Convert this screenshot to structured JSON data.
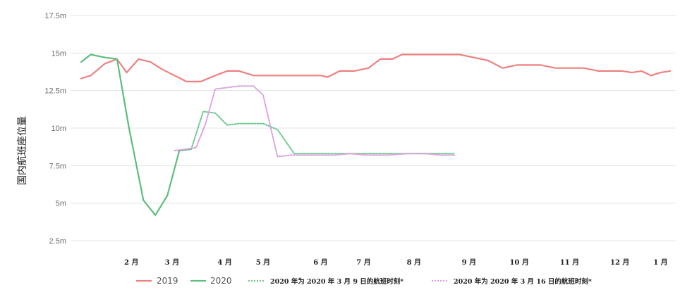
{
  "chart_data": {
    "type": "line",
    "ylabel": "国内航班座位量",
    "ylim": [
      2.5,
      17.5
    ],
    "yticks": [
      "2.5m",
      "5m",
      "7.5m",
      "10m",
      "12.5m",
      "15m",
      "17.5m"
    ],
    "ytick_values": [
      2.5,
      5,
      7.5,
      10,
      12.5,
      15,
      17.5
    ],
    "xlim": [
      0,
      12.3
    ],
    "xticks": [
      "2 月",
      "3 月",
      "4 月",
      "5 月",
      "6 月",
      "7 月",
      "8 月",
      "9 月",
      "10 月",
      "11 月",
      "12 月",
      "1 月"
    ],
    "xtick_values": [
      1.05,
      1.9,
      3.0,
      3.8,
      5.0,
      5.9,
      6.95,
      8.1,
      9.15,
      10.2,
      11.25,
      12.1
    ],
    "grid": true,
    "legend_position": "bottom",
    "series": [
      {
        "name": "2019",
        "color": "#f08080",
        "style": "solid",
        "x": [
          0,
          0.2,
          0.5,
          0.75,
          0.95,
          1.2,
          1.45,
          1.7,
          1.95,
          2.2,
          2.5,
          2.8,
          3.05,
          3.3,
          3.6,
          3.8,
          4.1,
          4.4,
          4.7,
          5.0,
          5.15,
          5.4,
          5.7,
          6.0,
          6.25,
          6.5,
          6.7,
          7.0,
          7.3,
          7.6,
          7.9,
          8.2,
          8.5,
          8.8,
          9.1,
          9.4,
          9.6,
          9.9,
          10.2,
          10.5,
          10.8,
          11.0,
          11.3,
          11.5,
          11.7,
          11.9,
          12.1,
          12.3
        ],
        "y": [
          13.3,
          13.5,
          14.3,
          14.6,
          13.7,
          14.6,
          14.4,
          13.9,
          13.5,
          13.1,
          13.1,
          13.5,
          13.8,
          13.8,
          13.5,
          13.5,
          13.5,
          13.5,
          13.5,
          13.5,
          13.4,
          13.8,
          13.8,
          14.0,
          14.6,
          14.6,
          14.9,
          14.9,
          14.9,
          14.9,
          14.9,
          14.7,
          14.5,
          14.0,
          14.2,
          14.2,
          14.2,
          14.0,
          14.0,
          14.0,
          13.8,
          13.8,
          13.8,
          13.7,
          13.8,
          13.5,
          13.7,
          13.8
        ]
      },
      {
        "name": "2020",
        "color": "#5cbf7c",
        "style": "solid",
        "x": [
          0,
          0.2,
          0.5,
          0.75,
          1.0,
          1.3,
          1.55,
          1.8,
          2.05,
          2.3
        ],
        "y": [
          14.4,
          14.9,
          14.7,
          14.6,
          10.0,
          5.2,
          4.2,
          5.5,
          8.5,
          8.6
        ]
      },
      {
        "name": "2020 年为 2020 年 3 月 9 日的航班时刻*",
        "color": "#6fc98c",
        "style": "dashed",
        "x": [
          2.3,
          2.55,
          2.8,
          3.05,
          3.3,
          3.6,
          3.8,
          4.1,
          4.45,
          4.8,
          5.1,
          5.4,
          5.8,
          6.2,
          6.55,
          6.95,
          7.3,
          7.6,
          7.8
        ],
        "y": [
          8.6,
          11.1,
          11.0,
          10.2,
          10.3,
          10.3,
          10.3,
          9.9,
          8.3,
          8.3,
          8.3,
          8.3,
          8.3,
          8.3,
          8.3,
          8.3,
          8.3,
          8.3,
          8.3
        ]
      },
      {
        "name": "2020 年为 2020 年 3 月 16 日的航班时刻*",
        "color": "#d9a0e0",
        "style": "dashed",
        "x": [
          1.95,
          2.2,
          2.4,
          2.6,
          2.8,
          3.05,
          3.3,
          3.6,
          3.8,
          4.1,
          4.4,
          4.7,
          5.0,
          5.3,
          5.6,
          6.0,
          6.4,
          6.8,
          7.2,
          7.5,
          7.8
        ],
        "y": [
          8.5,
          8.6,
          8.7,
          10.3,
          12.6,
          12.7,
          12.8,
          12.8,
          12.2,
          8.1,
          8.2,
          8.2,
          8.2,
          8.2,
          8.3,
          8.2,
          8.2,
          8.3,
          8.3,
          8.2,
          8.2
        ]
      }
    ]
  }
}
